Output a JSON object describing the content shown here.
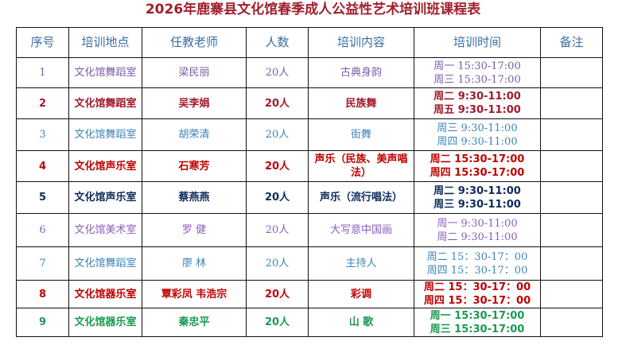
{
  "title": "2026年鹿寨县文化馆春季成人公益性艺术培训班课程表",
  "headers": [
    "序号",
    "培训地点",
    "任教老师",
    "人数",
    "培训内容",
    "培训时间",
    "备注"
  ],
  "rows": [
    {
      "no": "1",
      "place": "文化馆舞蹈室",
      "teacher": "梁民丽",
      "count": "20人",
      "content": "古典身韵",
      "time1": "周一 15:30-17:00",
      "time2": "周三 15:30-17:00",
      "note": "",
      "color": "#7a5ca8",
      "bold": false
    },
    {
      "no": "2",
      "place": "文化馆舞蹈室",
      "teacher": "吴李娟",
      "count": "20人",
      "content": "民族舞",
      "time1": "周二 9:30-11:00",
      "time2": "周五 9:30-11:00",
      "note": "",
      "color": "#a01a2a",
      "bold": true
    },
    {
      "no": "3",
      "place": "文化馆舞蹈室",
      "teacher": "胡荣清",
      "count": "20人",
      "content": "街舞",
      "time1": "周三 9:30-11:00",
      "time2": "周四 9:30-11:00",
      "note": "",
      "color": "#3d85b8",
      "bold": false
    },
    {
      "no": "4",
      "place": "文化馆声乐室",
      "teacher": "石寒芳",
      "count": "20人",
      "content": "声乐（民族、美声唱法）",
      "time1": "周二 15:30-17:00",
      "time2": "周四 15:30-17:00",
      "note": "",
      "color": "#c00000",
      "bold": true
    },
    {
      "no": "5",
      "place": "文化馆声乐室",
      "teacher": "蔡燕燕",
      "count": "20人",
      "content": "声乐（流行唱法）",
      "time1": "周二 9:30-11:00",
      "time2": "周三 9:30-11:00",
      "note": "",
      "color": "#0d2a5a",
      "bold": true
    },
    {
      "no": "6",
      "place": "文化馆美术室",
      "teacher": "罗 健",
      "count": "20人",
      "content": "大写意中国画",
      "time1": "周一 9:30-11:00",
      "time2": "周二 9:30-11:00",
      "note": "",
      "color": "#8a60b8",
      "bold": false
    },
    {
      "no": "7",
      "place": "文化馆舞蹈室",
      "teacher": "廖 林",
      "count": "20人",
      "content": "主持人",
      "time1": "周二 15：30-17：00",
      "time2": "周四 15：30-17：00",
      "note": "",
      "color": "#3d85b8",
      "bold": false
    },
    {
      "no": "8",
      "place": "文化馆器乐室",
      "teacher": "覃彩凤 韦浩宗",
      "count": "20人",
      "content": "彩调",
      "time1": "周二 15：30-17：00",
      "time2": "周四 15：30-17：00",
      "note": "",
      "color": "#c00000",
      "bold": true
    },
    {
      "no": "9",
      "place": "文化馆器乐室",
      "teacher": "秦忠平",
      "count": "20人",
      "content": "山 歌",
      "time1": "周一 15:30-17:00",
      "time2": "周三 15:30-17:00",
      "note": "",
      "color": "#1a9a50",
      "bold": true
    }
  ]
}
